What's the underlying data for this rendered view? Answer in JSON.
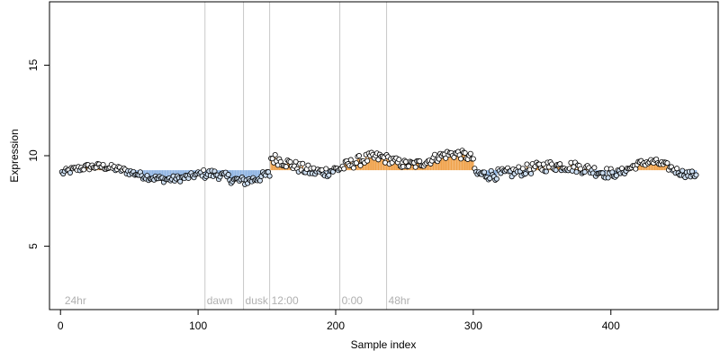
{
  "chart_data": {
    "type": "scatter",
    "title": "",
    "xlabel": "Sample index",
    "ylabel": "Expression",
    "xlim": [
      -8,
      478
    ],
    "ylim": [
      1.5,
      18.5
    ],
    "x_ticks": [
      0,
      100,
      200,
      300,
      400
    ],
    "y_ticks": [
      5,
      10,
      15
    ],
    "grid": false,
    "colors": {
      "point_outline": "#000000",
      "point_fill_blue": "#cfe0f3",
      "bar_blue": "#8fb4e3",
      "bar_orange": "#f0a24b",
      "annotation": "#c8c8c8",
      "annotation_text": "#b0b0b0"
    },
    "vertical_markers": [
      {
        "x": 105,
        "label": "dawn"
      },
      {
        "x": 133,
        "label": "dusk"
      },
      {
        "x": 152,
        "label": "12:00"
      },
      {
        "x": 203,
        "label": "0:00"
      },
      {
        "x": 237,
        "label": "48hr"
      }
    ],
    "start_label": {
      "x": 3,
      "label": "24hr"
    },
    "baseline": 9.2,
    "segments": [
      {
        "x_start": 1,
        "x_end": 104,
        "base": 9.05,
        "amp": 0.35,
        "noise": 0.18
      },
      {
        "x_start": 105,
        "x_end": 152,
        "base": 8.8,
        "amp": 0.2,
        "noise": 0.25
      },
      {
        "x_start": 153,
        "x_end": 236,
        "base": 9.5,
        "amp": 0.4,
        "noise": 0.3
      },
      {
        "x_start": 237,
        "x_end": 300,
        "base": 9.8,
        "amp": 0.3,
        "noise": 0.25
      },
      {
        "x_start": 301,
        "x_end": 400,
        "base": 9.2,
        "amp": 0.25,
        "noise": 0.3
      },
      {
        "x_start": 401,
        "x_end": 462,
        "base": 9.3,
        "amp": 0.35,
        "noise": 0.2
      }
    ]
  }
}
